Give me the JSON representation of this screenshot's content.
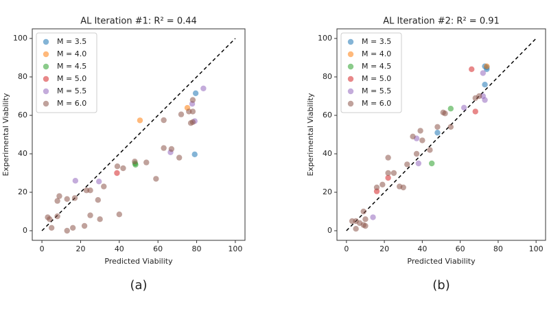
{
  "chart_data": [
    {
      "type": "scatter",
      "title": "AL Iteration #1: R² = 0.44",
      "caption": "(a)",
      "x_label": "Predicted Viability",
      "y_label": "Experimental Viability",
      "xlim": [
        -5,
        105
      ],
      "ylim": [
        -5,
        105
      ],
      "xticks": [
        0,
        20,
        40,
        60,
        80,
        100
      ],
      "yticks": [
        0,
        20,
        40,
        60,
        80,
        100
      ],
      "legend": "upper left",
      "reference_line": {
        "x": [
          0,
          100
        ],
        "y": [
          0,
          100
        ]
      },
      "series": [
        {
          "name": "M = 3.5",
          "color": "#1f77b4",
          "x": [
            79.5,
            79
          ],
          "values": [
            71.5,
            39.7
          ]
        },
        {
          "name": "M = 4.0",
          "color": "#ff7f0e",
          "x": [
            50.7,
            75.2
          ],
          "values": [
            57.4,
            63.9
          ]
        },
        {
          "name": "M = 4.5",
          "color": "#2ca02c",
          "x": [
            48.2,
            48.4
          ],
          "values": [
            35,
            34.3
          ]
        },
        {
          "name": "M = 5.0",
          "color": "#d62728",
          "x": [
            38.8
          ],
          "values": [
            30
          ]
        },
        {
          "name": "M = 5.5",
          "color": "#9467bd",
          "x": [
            83.5,
            77.7,
            79,
            66.5,
            17.3,
            29.5
          ],
          "values": [
            74,
            66,
            57,
            40.8,
            26,
            25.6
          ]
        },
        {
          "name": "M = 6.0",
          "color": "#8c564b",
          "x": [
            3,
            4,
            5,
            8,
            9,
            8,
            13,
            13,
            16,
            17,
            22,
            23,
            25,
            25,
            29,
            30,
            32,
            39,
            40,
            42,
            48,
            54,
            59,
            63,
            63,
            67,
            71,
            72,
            78,
            78,
            78,
            76,
            77
          ],
          "values": [
            7,
            6,
            1.5,
            15.5,
            18,
            7.5,
            16.5,
            0,
            1.5,
            17,
            2.5,
            21,
            21,
            8,
            16,
            6,
            23,
            33.5,
            8.5,
            32.5,
            36,
            35.5,
            27,
            43,
            57.5,
            42.5,
            38,
            60.5,
            62,
            56.5,
            68,
            62,
            56
          ]
        }
      ]
    },
    {
      "type": "scatter",
      "title": "AL Iteration #2: R² = 0.91",
      "caption": "(b)",
      "x_label": "Predicted Viability",
      "y_label": "Experimental Viability",
      "xlim": [
        -5,
        105
      ],
      "ylim": [
        -5,
        105
      ],
      "xticks": [
        0,
        20,
        40,
        60,
        80,
        100
      ],
      "yticks": [
        0,
        20,
        40,
        60,
        80,
        100
      ],
      "legend": "upper left",
      "reference_line": {
        "x": [
          0,
          100
        ],
        "y": [
          0,
          100
        ]
      },
      "series": [
        {
          "name": "M = 3.5",
          "color": "#1f77b4",
          "x": [
            73,
            74,
            73,
            48,
            74
          ],
          "values": [
            85.5,
            84,
            76,
            51,
            85
          ]
        },
        {
          "name": "M = 4.0",
          "color": "#ff7f0e",
          "x": [
            74
          ],
          "values": [
            85.5
          ]
        },
        {
          "name": "M = 4.5",
          "color": "#2ca02c",
          "x": [
            55,
            45
          ],
          "values": [
            63.5,
            35
          ]
        },
        {
          "name": "M = 5.0",
          "color": "#d62728",
          "x": [
            66,
            68,
            22,
            16
          ],
          "values": [
            84,
            62,
            27.5,
            20.5
          ]
        },
        {
          "name": "M = 5.5",
          "color": "#9467bd",
          "x": [
            14,
            37,
            38,
            62,
            72,
            73,
            72
          ],
          "values": [
            7,
            48,
            35,
            64,
            70,
            68,
            82
          ]
        },
        {
          "name": "M = 6.0",
          "color": "#8c564b",
          "x": [
            3,
            5,
            5,
            7,
            9,
            9,
            10,
            10,
            16,
            19,
            22,
            22,
            25,
            28,
            30,
            32,
            35,
            37,
            39,
            40,
            44,
            48,
            51,
            52,
            55,
            68,
            70
          ],
          "values": [
            5,
            5,
            1,
            4,
            10,
            3,
            6,
            2.5,
            22.5,
            24,
            30,
            38,
            30,
            23,
            22.5,
            34.5,
            49,
            40,
            52,
            47,
            42,
            54,
            61.5,
            61,
            54,
            69,
            70
          ]
        }
      ]
    }
  ]
}
